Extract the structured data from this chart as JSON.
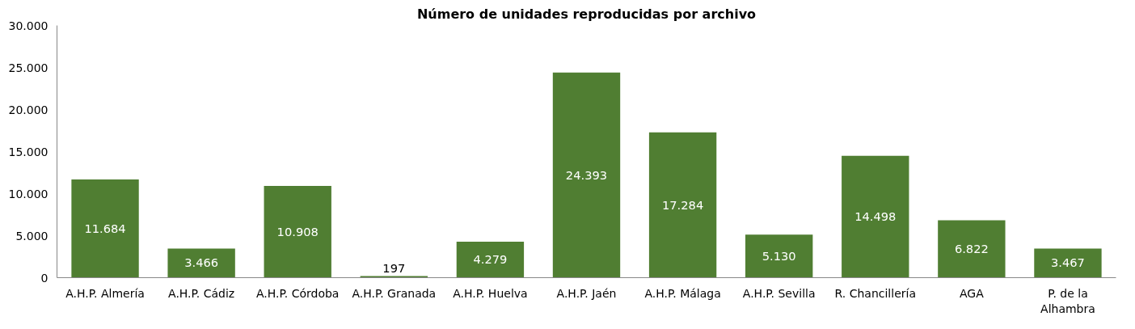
{
  "chart_data": {
    "type": "bar",
    "title": "Número de unidades reproducidas por archivo",
    "categories": [
      "A.H.P. Almería",
      "A.H.P. Cádiz",
      "A.H.P. Córdoba",
      "A.H.P. Granada",
      "A.H.P. Huelva",
      "A.H.P. Jaén",
      "A.H.P. Málaga",
      "A.H.P. Sevilla",
      "R. Chancillería",
      "AGA",
      "P. de la Alhambra"
    ],
    "values": [
      11684,
      3466,
      10908,
      197,
      4279,
      24393,
      17284,
      5130,
      14498,
      6822,
      3467
    ],
    "value_labels": [
      "11.684",
      "3.466",
      "10.908",
      "197",
      "4.279",
      "24.393",
      "17.284",
      "5.130",
      "14.498",
      "6.822",
      "3.467"
    ],
    "color": "#507e32",
    "ylim": [
      0,
      30000
    ],
    "yticks": [
      0,
      {
        "value": 5000,
        "label": "5.000"
      },
      {
        "value": 10000,
        "label": "10.000"
      },
      {
        "value": 15000,
        "label": "15.000"
      },
      {
        "value": 20000,
        "label": "20.000"
      },
      {
        "value": 25000,
        "label": "25.000"
      },
      {
        "value": 30000,
        "label": "30.000"
      }
    ],
    "grid": false
  }
}
